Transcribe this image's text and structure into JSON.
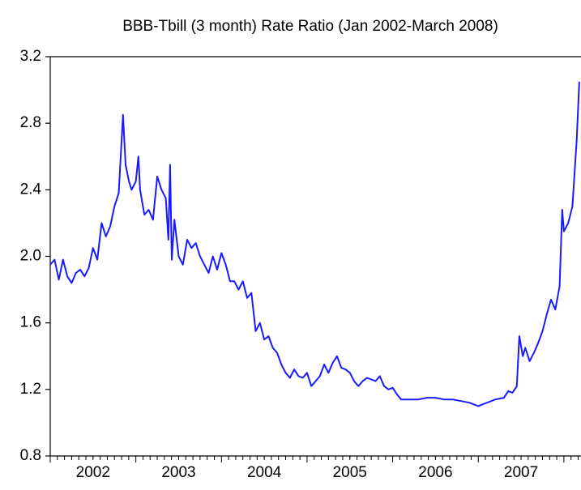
{
  "chart_data": {
    "type": "line",
    "title": "BBB-Tbill (3 month) Rate Ratio (Jan 2002-March 2008)",
    "x": [
      2002.0,
      2002.05,
      2002.1,
      2002.15,
      2002.2,
      2002.25,
      2002.3,
      2002.35,
      2002.4,
      2002.45,
      2002.5,
      2002.55,
      2002.6,
      2002.65,
      2002.7,
      2002.75,
      2002.8,
      2002.85,
      2002.88,
      2002.92,
      2002.95,
      2003.0,
      2003.03,
      2003.05,
      2003.1,
      2003.15,
      2003.2,
      2003.25,
      2003.3,
      2003.35,
      2003.38,
      2003.4,
      2003.42,
      2003.45,
      2003.5,
      2003.55,
      2003.6,
      2003.65,
      2003.7,
      2003.75,
      2003.8,
      2003.85,
      2003.9,
      2003.95,
      2004.0,
      2004.05,
      2004.1,
      2004.15,
      2004.2,
      2004.25,
      2004.3,
      2004.35,
      2004.4,
      2004.45,
      2004.5,
      2004.55,
      2004.6,
      2004.65,
      2004.7,
      2004.75,
      2004.8,
      2004.85,
      2004.9,
      2004.95,
      2005.0,
      2005.05,
      2005.1,
      2005.15,
      2005.2,
      2005.25,
      2005.3,
      2005.35,
      2005.4,
      2005.45,
      2005.5,
      2005.55,
      2005.6,
      2005.65,
      2005.7,
      2005.75,
      2005.8,
      2005.85,
      2005.9,
      2005.95,
      2006.0,
      2006.05,
      2006.1,
      2006.2,
      2006.3,
      2006.4,
      2006.5,
      2006.6,
      2006.7,
      2006.8,
      2006.9,
      2007.0,
      2007.05,
      2007.1,
      2007.2,
      2007.3,
      2007.35,
      2007.4,
      2007.45,
      2007.48,
      2007.52,
      2007.55,
      2007.6,
      2007.65,
      2007.7,
      2007.75,
      2007.8,
      2007.85,
      2007.9,
      2007.95,
      2007.98,
      2008.0,
      2008.05,
      2008.1,
      2008.15,
      2008.18
    ],
    "series": [
      {
        "color": "#1a1aff",
        "values": [
          1.95,
          1.98,
          1.86,
          1.98,
          1.88,
          1.84,
          1.9,
          1.92,
          1.88,
          1.93,
          2.05,
          1.98,
          2.2,
          2.12,
          2.18,
          2.3,
          2.38,
          2.85,
          2.55,
          2.45,
          2.4,
          2.45,
          2.6,
          2.4,
          2.25,
          2.28,
          2.22,
          2.48,
          2.4,
          2.35,
          2.1,
          2.55,
          1.98,
          2.22,
          2.0,
          1.95,
          2.1,
          2.05,
          2.08,
          2.0,
          1.95,
          1.9,
          2.0,
          1.92,
          2.02,
          1.95,
          1.85,
          1.85,
          1.8,
          1.85,
          1.75,
          1.78,
          1.55,
          1.6,
          1.5,
          1.52,
          1.45,
          1.42,
          1.35,
          1.3,
          1.27,
          1.32,
          1.28,
          1.27,
          1.3,
          1.22,
          1.25,
          1.28,
          1.35,
          1.3,
          1.36,
          1.4,
          1.33,
          1.32,
          1.3,
          1.25,
          1.22,
          1.25,
          1.27,
          1.26,
          1.25,
          1.28,
          1.22,
          1.2,
          1.21,
          1.17,
          1.14,
          1.14,
          1.14,
          1.15,
          1.15,
          1.14,
          1.14,
          1.13,
          1.12,
          1.1,
          1.11,
          1.12,
          1.14,
          1.15,
          1.19,
          1.18,
          1.22,
          1.52,
          1.4,
          1.45,
          1.37,
          1.42,
          1.48,
          1.55,
          1.65,
          1.74,
          1.68,
          1.82,
          2.28,
          2.15,
          2.2,
          2.3,
          2.7,
          3.05
        ]
      }
    ],
    "xlim": [
      2002,
      2008.2
    ],
    "xticks": [
      {
        "value": 2002.5,
        "label": "2002"
      },
      {
        "value": 2003.5,
        "label": "2003"
      },
      {
        "value": 2004.5,
        "label": "2004"
      },
      {
        "value": 2005.5,
        "label": "2005"
      },
      {
        "value": 2006.5,
        "label": "2006"
      },
      {
        "value": 2007.5,
        "label": "2007"
      }
    ],
    "ylim": [
      0.8,
      3.2
    ],
    "yticks": [
      0.8,
      1.2,
      1.6,
      {
        "value": 2,
        "label": "2.0"
      },
      2.4,
      2.8,
      3.2
    ]
  }
}
